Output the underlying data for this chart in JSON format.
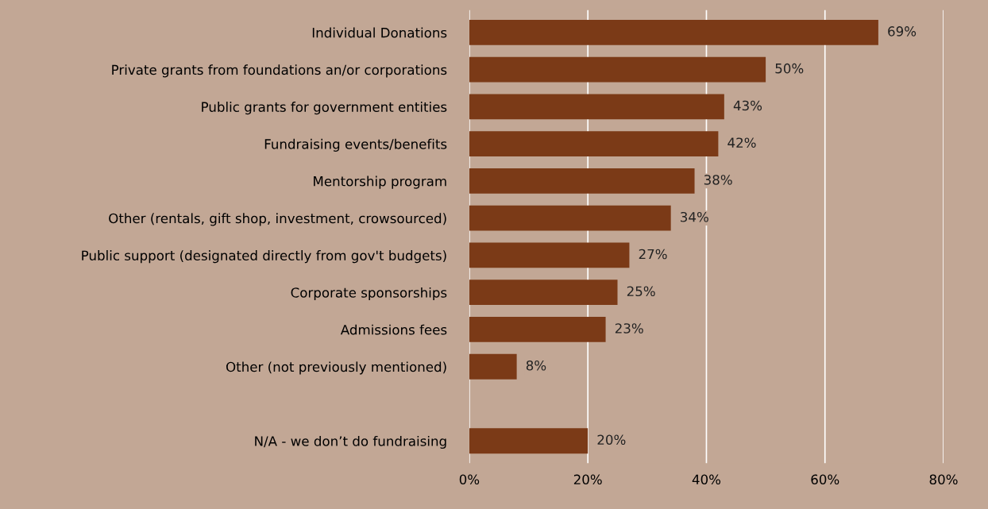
{
  "chart_data": {
    "type": "bar",
    "orientation": "horizontal",
    "categories": [
      "Individual Donations",
      "Private grants from foundations an/or corporations",
      "Public grants for government entities",
      "Fundraising events/benefits",
      "Mentorship program",
      "Other (rentals, gift shop, investment, crowsourced)",
      "Public support (designated directly from gov't budgets)",
      "Corporate sponsorships",
      "Admissions fees",
      "Other (not previously mentioned)",
      null,
      "N/A - we don’t do fundraising"
    ],
    "values": [
      69,
      50,
      43,
      42,
      38,
      34,
      27,
      25,
      23,
      8,
      null,
      20
    ],
    "value_labels": [
      "69%",
      "50%",
      "43%",
      "42%",
      "38%",
      "34%",
      "27%",
      "25%",
      "23%",
      "8%",
      null,
      "20%"
    ],
    "color": "#7b3a17",
    "xlim": [
      0,
      80
    ],
    "xticks": [
      {
        "value": 0,
        "label": "0%"
      },
      {
        "value": 20,
        "label": "20%"
      },
      {
        "value": 40,
        "label": "40%"
      },
      {
        "value": 60,
        "label": "60%"
      },
      {
        "value": 80,
        "label": "80%"
      }
    ],
    "grid": "x"
  }
}
